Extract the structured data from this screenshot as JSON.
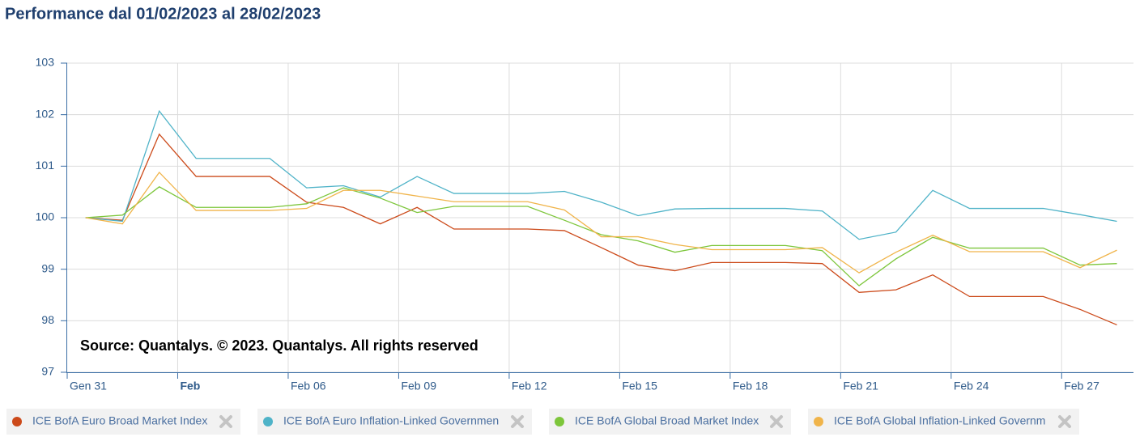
{
  "chart_data": {
    "type": "line",
    "title": "Performance dal 01/02/2023 al 28/02/2023",
    "annotation": "Source: Quantalys. © 2023. Quantalys. All rights reserved",
    "x": [
      0,
      1,
      2,
      3,
      4,
      5,
      6,
      7,
      8,
      9,
      10,
      11,
      12,
      13,
      14,
      15,
      16,
      17,
      18,
      19,
      20,
      21,
      22,
      23,
      24,
      25,
      26,
      27,
      28
    ],
    "xlim": [
      -0.5,
      28.45
    ],
    "xticks": [
      {
        "value": -0.5,
        "label": "Gen 31"
      },
      {
        "value": 2.5,
        "label": "Feb"
      },
      {
        "value": 5.5,
        "label": "Feb 06"
      },
      {
        "value": 8.5,
        "label": "Feb 09"
      },
      {
        "value": 11.5,
        "label": "Feb 12"
      },
      {
        "value": 14.5,
        "label": "Feb 15"
      },
      {
        "value": 17.5,
        "label": "Feb 18"
      },
      {
        "value": 20.5,
        "label": "Feb 21"
      },
      {
        "value": 23.5,
        "label": "Feb 24"
      },
      {
        "value": 26.5,
        "label": "Feb 27"
      }
    ],
    "ylim": [
      97,
      103
    ],
    "yticks": [
      97,
      98,
      99,
      100,
      101,
      102,
      103
    ],
    "grid": true,
    "legend": "bottom",
    "series": [
      {
        "name": "ICE BofA Euro Broad Market Index",
        "color": "#cc4a1a",
        "values": [
          100,
          99.95,
          101.62,
          100.8,
          100.8,
          100.8,
          100.3,
          100.2,
          99.88,
          100.2,
          99.78,
          99.78,
          99.78,
          99.75,
          99.42,
          99.08,
          98.97,
          99.13,
          99.13,
          99.13,
          99.11,
          98.55,
          98.6,
          98.89,
          98.47,
          98.47,
          98.47,
          98.22,
          97.92
        ]
      },
      {
        "name": "ICE BofA Euro Inflation-Linked Governmen",
        "color": "#4fb3c8",
        "values": [
          100,
          99.93,
          102.07,
          101.15,
          101.15,
          101.15,
          100.58,
          100.62,
          100.4,
          100.8,
          100.47,
          100.47,
          100.47,
          100.51,
          100.3,
          100.04,
          100.17,
          100.18,
          100.18,
          100.18,
          100.13,
          99.58,
          99.72,
          100.53,
          100.18,
          100.18,
          100.18,
          100.06,
          99.93
        ]
      },
      {
        "name": "ICE BofA Global Broad Market Index",
        "color": "#7dc63b",
        "values": [
          100,
          100.05,
          100.6,
          100.2,
          100.2,
          100.2,
          100.27,
          100.58,
          100.38,
          100.1,
          100.22,
          100.22,
          100.22,
          99.95,
          99.67,
          99.55,
          99.33,
          99.46,
          99.46,
          99.46,
          99.36,
          98.68,
          99.2,
          99.62,
          99.41,
          99.41,
          99.41,
          99.08,
          99.11
        ]
      },
      {
        "name": "ICE BofA Global Inflation-Linked Governm",
        "color": "#f0b44a",
        "values": [
          100,
          99.88,
          100.88,
          100.14,
          100.14,
          100.14,
          100.18,
          100.53,
          100.53,
          100.42,
          100.31,
          100.31,
          100.31,
          100.15,
          99.63,
          99.63,
          99.48,
          99.38,
          99.38,
          99.38,
          99.42,
          98.93,
          99.33,
          99.66,
          99.34,
          99.34,
          99.34,
          99.03,
          99.37
        ]
      }
    ]
  }
}
